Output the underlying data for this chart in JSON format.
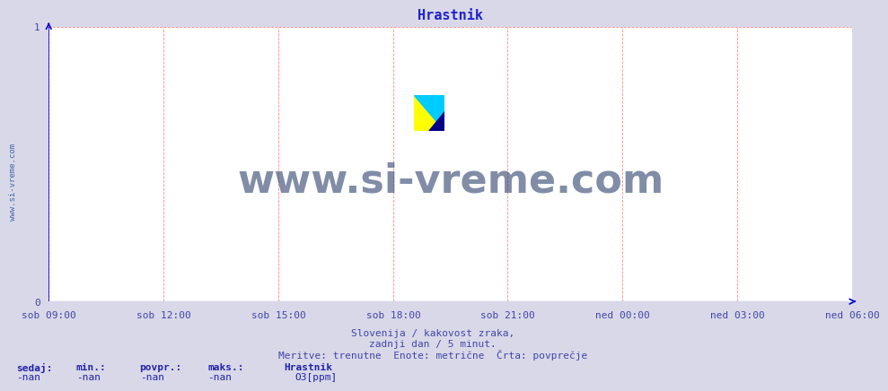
{
  "title": "Hrastnik",
  "title_color": "#2222cc",
  "title_fontsize": 11,
  "background_color": "#d8d8e8",
  "plot_bg_color": "#ffffff",
  "axis_color": "#0000cc",
  "grid_color": "#ff8888",
  "yticks": [
    0,
    1
  ],
  "ylim": [
    0,
    1
  ],
  "xtick_labels": [
    "sob 09:00",
    "sob 12:00",
    "sob 15:00",
    "sob 18:00",
    "sob 21:00",
    "ned 00:00",
    "ned 03:00",
    "ned 06:00"
  ],
  "xtick_positions": [
    0.0,
    0.143,
    0.286,
    0.429,
    0.571,
    0.714,
    0.857,
    1.0
  ],
  "watermark_side": "www.si-vreme.com",
  "watermark_center": "www.si-vreme.com",
  "watermark_color": "#1a3060",
  "footer_line1": "Slovenija / kakovost zraka,",
  "footer_line2": "zadnji dan / 5 minut.",
  "footer_line3": "Meritve: trenutne  Enote: metrične  Črta: povprečje",
  "footer_color": "#4444aa",
  "legend_labels": [
    "sedaj:",
    "min.:",
    "povpr.:",
    "maks.:"
  ],
  "legend_values": [
    "-nan",
    "-nan",
    "-nan",
    "-nan"
  ],
  "legend_station": "Hrastnik",
  "legend_series": "O3[ppm]",
  "legend_series_color": "#cc00cc",
  "legend_text_color": "#2222aa",
  "tick_color": "#4444aa",
  "tick_fontsize": 8
}
